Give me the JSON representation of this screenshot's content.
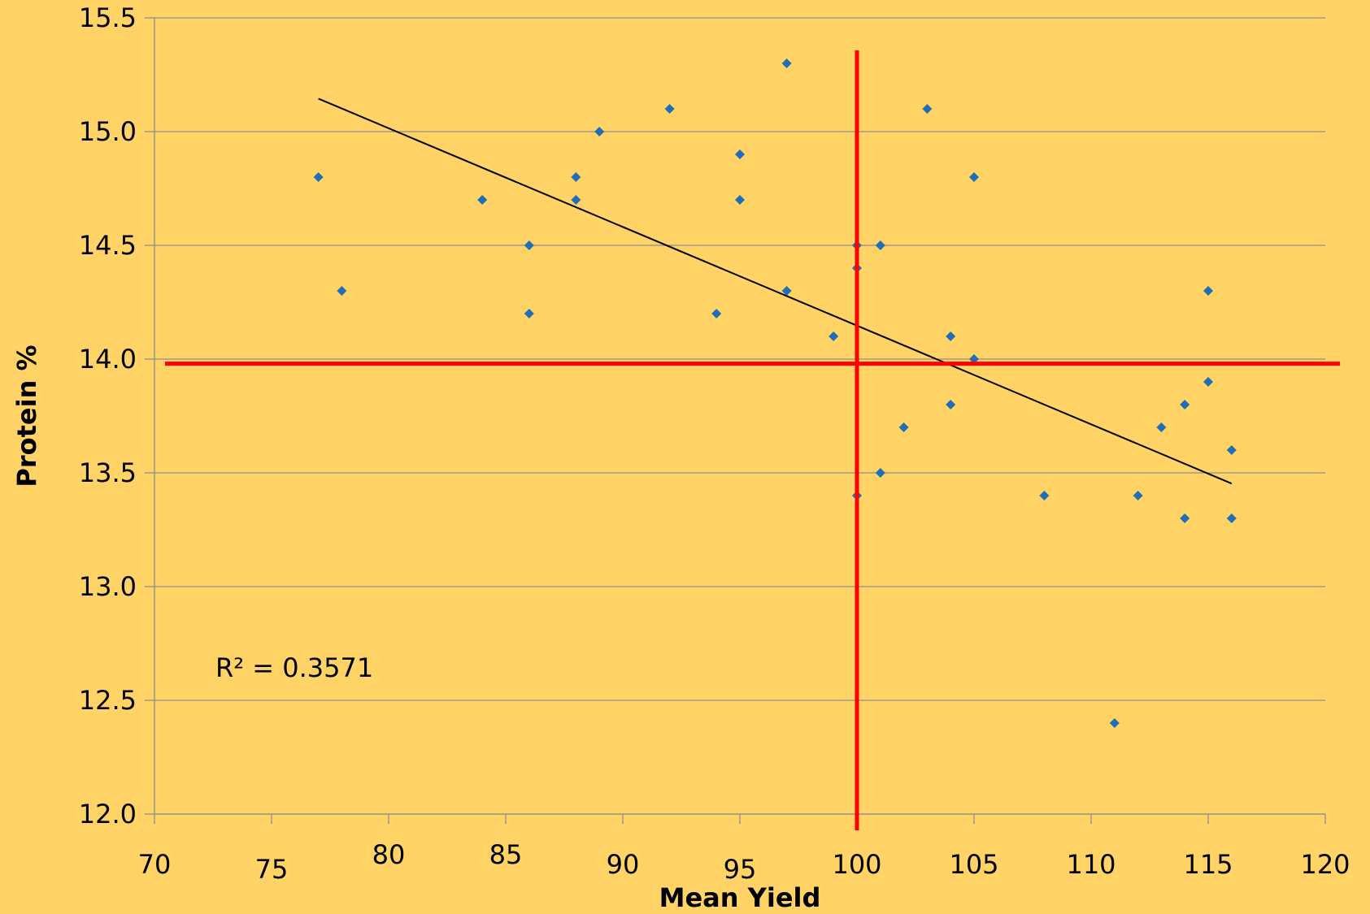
{
  "chart_data": {
    "type": "scatter",
    "title": "",
    "xlabel": "Mean Yield",
    "ylabel": "Protein %",
    "xlim": [
      70,
      120
    ],
    "ylim": [
      12.0,
      15.5
    ],
    "x_ticks": [
      "70",
      "75",
      "80",
      "85",
      "90",
      "95",
      "100",
      "105",
      "110",
      "115",
      "120"
    ],
    "y_ticks": [
      "12.0",
      "12.5",
      "13.0",
      "13.5",
      "14.0",
      "14.5",
      "15.0",
      "15.5"
    ],
    "grid": "horizontal",
    "colors": {
      "background": "#FFD366",
      "points": "#1F6FB4",
      "trendline": "#000000",
      "reference_lines": "#FF0000",
      "grid": "#8E8E8E"
    },
    "series": [
      {
        "x": [
          77,
          78,
          84,
          86,
          86,
          88,
          88,
          89,
          92,
          94,
          95,
          95,
          97,
          97,
          99,
          100,
          100,
          100,
          101,
          101,
          102,
          103,
          104,
          104,
          105,
          105,
          108,
          111,
          112,
          113,
          114,
          114,
          115,
          115,
          116,
          116
        ],
        "y": [
          14.8,
          14.3,
          14.7,
          14.5,
          14.2,
          14.8,
          14.7,
          15.0,
          15.1,
          14.2,
          14.9,
          14.7,
          15.3,
          14.3,
          14.1,
          14.5,
          14.4,
          13.4,
          14.5,
          13.5,
          13.7,
          15.1,
          14.1,
          13.8,
          14.8,
          14.0,
          13.4,
          12.4,
          13.4,
          13.7,
          13.8,
          13.3,
          14.3,
          13.9,
          13.6,
          13.3
        ]
      }
    ],
    "trendline": {
      "type": "linear",
      "x": [
        77,
        116
      ],
      "y": [
        15.145,
        13.453
      ]
    },
    "reference_lines": {
      "vertical_x": 100,
      "horizontal_y": 13.98
    },
    "annotations": [
      {
        "text": "R² = 0.3571"
      }
    ]
  }
}
